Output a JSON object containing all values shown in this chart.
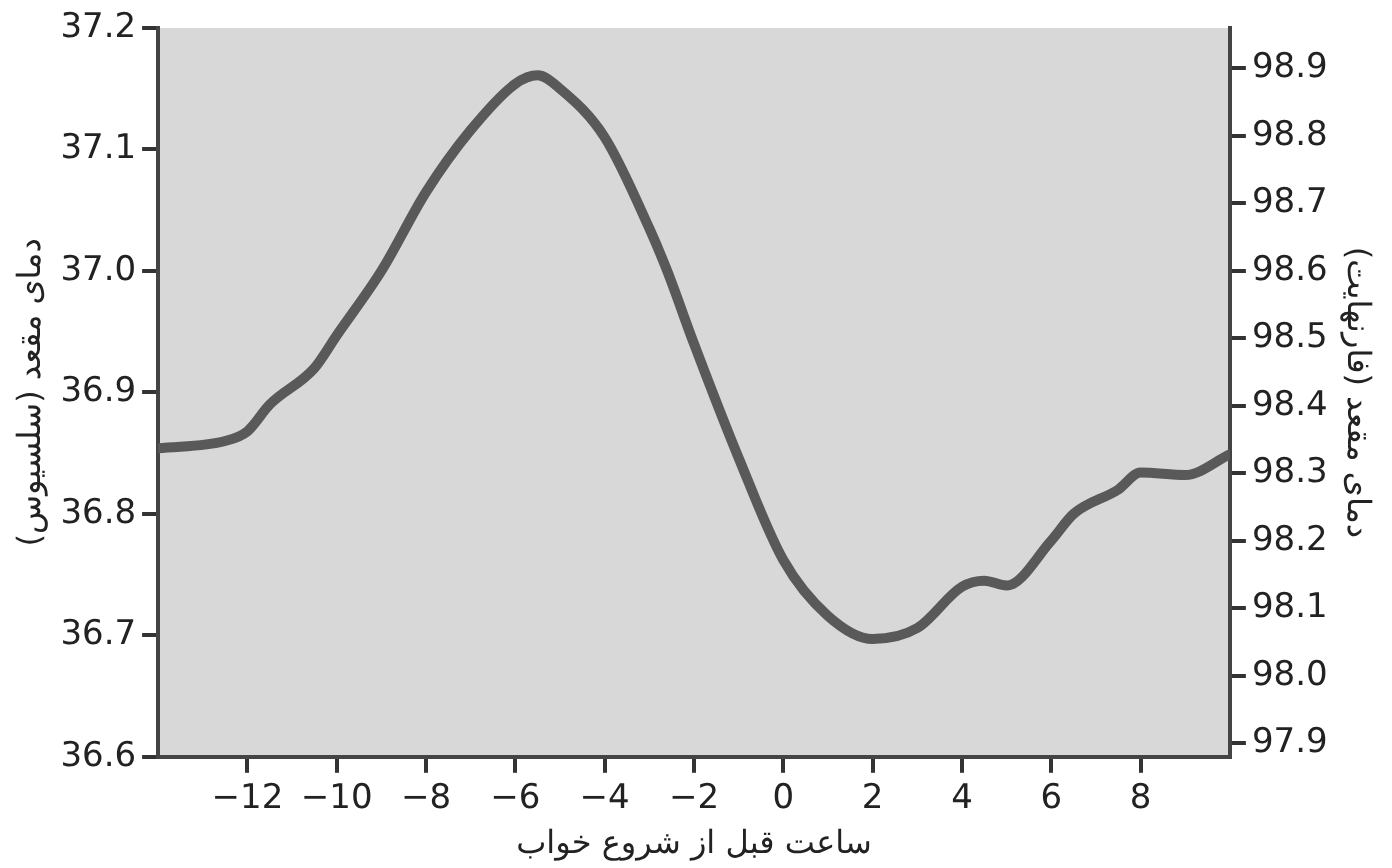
{
  "chart_data": {
    "type": "line",
    "xlabel": "ساعت قبل از شروع خواب",
    "ylabel": "دمای مقعد (سلسیوس)",
    "y2label": "دمای مقعد (فارنهایت)",
    "xlim": [
      -14,
      10
    ],
    "xticks": [
      -12,
      -10,
      -8,
      -6,
      -4,
      -2,
      0,
      2,
      4,
      6,
      8
    ],
    "ylim": [
      36.6,
      37.2
    ],
    "yticks": [
      36.6,
      36.7,
      36.8,
      36.9,
      {
        "value": 37,
        "label": "37.0"
      },
      37.1,
      37.2
    ],
    "y2lim": [
      97.88,
      98.96
    ],
    "y2ticks": [
      97.9,
      {
        "value": 98,
        "label": "98.0"
      },
      98.1,
      98.2,
      98.3,
      98.4,
      98.5,
      98.6,
      98.7,
      98.8,
      98.9
    ],
    "grid": false,
    "legend": false,
    "marker": "none",
    "line_style": "solid",
    "series": [
      {
        "color": "#595959",
        "x": [
          -14,
          -12.5,
          -12,
          -11.5,
          -10.5,
          -10,
          -9,
          -8,
          -7,
          -6,
          -5.5,
          -5,
          -4,
          -3,
          -2.6,
          -2,
          -1,
          0,
          1,
          2,
          3,
          4,
          4.5,
          5,
          6,
          6.5,
          7.5,
          8,
          9,
          10
        ],
        "values": [
          36.854,
          36.86,
          36.868,
          36.89,
          36.92,
          36.947,
          37.0,
          37.065,
          37.116,
          37.154,
          37.161,
          37.15,
          37.11,
          37.035,
          37.0,
          36.94,
          36.846,
          36.762,
          36.716,
          36.697,
          36.706,
          36.74,
          36.745,
          36.741,
          36.778,
          36.8,
          36.82,
          36.834,
          36.832,
          36.849
        ]
      }
    ]
  }
}
